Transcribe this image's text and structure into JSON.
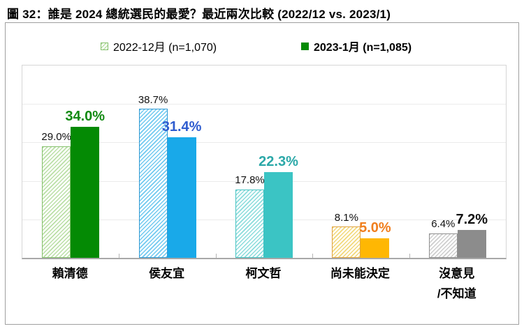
{
  "title": "圖 32：誰是 2024 總統選民的最愛？最近兩次比較 (2022/12 vs. 2023/1)",
  "legend": [
    {
      "label": "2022-12月 (n=1,070)",
      "style": "hatched-green",
      "bold": false
    },
    {
      "label": "2023-1月 (n=1,085)",
      "style": "solid-green",
      "bold": true
    }
  ],
  "chart_data": {
    "type": "bar",
    "title": "圖 32：誰是 2024 總統選民的最愛？最近兩次比較 (2022/12 vs. 2023/1)",
    "categories": [
      "賴清德",
      "侯友宜",
      "柯文哲",
      "尚未能決定",
      "沒意見\n/不知道"
    ],
    "series": [
      {
        "name": "2022-12月 (n=1,070)",
        "values": [
          29.0,
          38.7,
          17.8,
          8.1,
          6.4
        ]
      },
      {
        "name": "2023-1月 (n=1,085)",
        "values": [
          34.0,
          31.4,
          22.3,
          5.0,
          7.2
        ]
      }
    ],
    "value_labels": {
      "series1": [
        "29.0%",
        "38.7%",
        "17.8%",
        "8.1%",
        "6.4%"
      ],
      "series2": [
        "34.0%",
        "31.4%",
        "22.3%",
        "5.0%",
        "7.2%"
      ]
    },
    "xlabel": "",
    "ylabel": "",
    "ylim": [
      0,
      50
    ],
    "gridline_step": 10,
    "grid": true,
    "legend_position": "top",
    "colors": [
      {
        "solid": "#048A04",
        "hatch_stripe": "#BADFA6",
        "hatch_border": "#84C06B",
        "label2": "#128A12"
      },
      {
        "solid": "#19A9E9",
        "hatch_stripe": "#6FC9F0",
        "hatch_border": "#2F9AD3",
        "label2": "#2E5CCF"
      },
      {
        "solid": "#3BC4C4",
        "hatch_stripe": "#8ADCDC",
        "hatch_border": "#45C2C2",
        "label2": "#2BA8A8"
      },
      {
        "solid": "#FFB703",
        "hatch_stripe": "#F2D878",
        "hatch_border": "#E0A23E",
        "label2": "#F07E1D"
      },
      {
        "solid": "#8C8C8C",
        "hatch_stripe": "#CDCDCD",
        "hatch_border": "#909090",
        "label2": "#111111"
      }
    ],
    "series1_label_color": "#111111"
  }
}
